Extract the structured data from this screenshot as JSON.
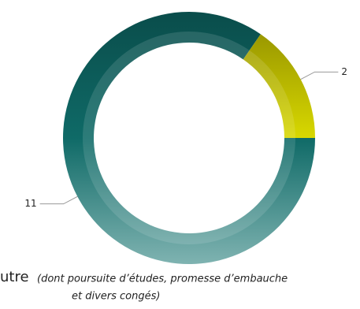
{
  "chart_data": {
    "type": "donut",
    "series": [
      {
        "name": "",
        "values": [
          11,
          2
        ],
        "colors": [
          "#0d6b68",
          "#c8c800"
        ]
      }
    ],
    "start_angle": 90,
    "legend": {
      "label": "utre",
      "note": [
        "(dont poursuite d’études, promesse d’embauche",
        "et divers congés)"
      ]
    }
  }
}
